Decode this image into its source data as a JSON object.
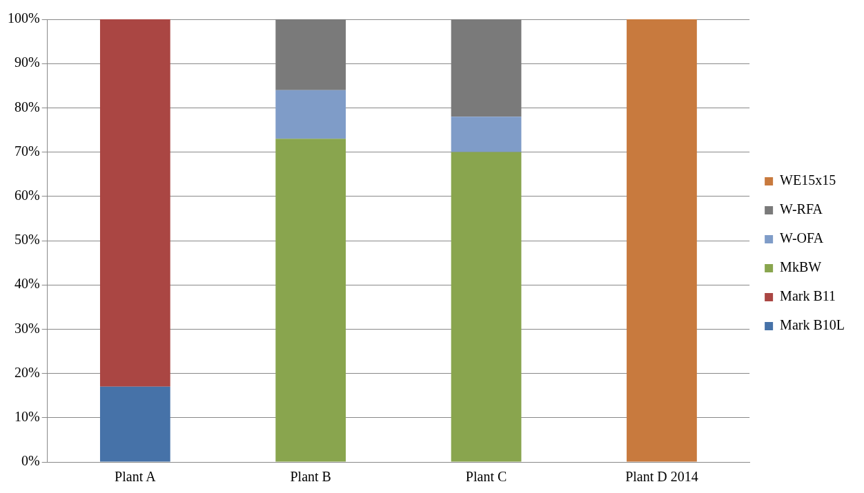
{
  "chart_data": {
    "type": "bar",
    "stacked": true,
    "categories": [
      "Plant A",
      "Plant B",
      "Plant C",
      "Plant D 2014"
    ],
    "series": [
      {
        "name": "Mark B10L",
        "color": "#4672a8",
        "values": [
          17,
          null,
          null,
          null
        ]
      },
      {
        "name": "Mark B11",
        "color": "#aa4643",
        "values": [
          83,
          null,
          null,
          null
        ]
      },
      {
        "name": "MkBW",
        "color": "#89a54e",
        "values": [
          null,
          73,
          70,
          null
        ]
      },
      {
        "name": "W-OFA",
        "color": "#7f9cc8",
        "values": [
          null,
          11,
          8,
          null
        ]
      },
      {
        "name": "W-RFA",
        "color": "#7a7a7a",
        "values": [
          null,
          16,
          22,
          null
        ]
      },
      {
        "name": "WE15x15",
        "color": "#c87a3e",
        "values": [
          null,
          null,
          null,
          100
        ]
      }
    ],
    "ylim": [
      0,
      100
    ],
    "yticks": [
      {
        "value": 0,
        "label": "0%"
      },
      {
        "value": 10,
        "label": "10%"
      },
      {
        "value": 20,
        "label": "20%"
      },
      {
        "value": 30,
        "label": "30%"
      },
      {
        "value": 40,
        "label": "40%"
      },
      {
        "value": 50,
        "label": "50%"
      },
      {
        "value": 60,
        "label": "60%"
      },
      {
        "value": 70,
        "label": "70%"
      },
      {
        "value": 80,
        "label": "80%"
      },
      {
        "value": 90,
        "label": "90%"
      },
      {
        "value": 100,
        "label": "100%"
      }
    ],
    "grid": "y",
    "legend": "right"
  }
}
